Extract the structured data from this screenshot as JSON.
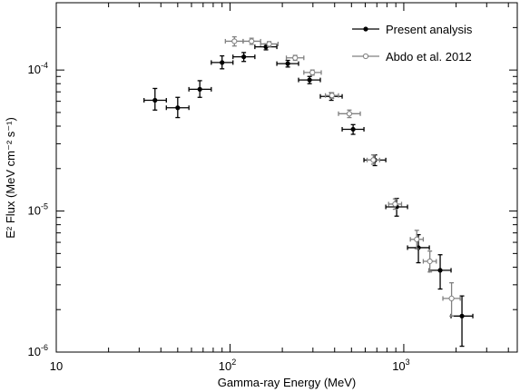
{
  "chart_data": {
    "type": "scatter",
    "title": "",
    "xlabel": "Gamma-ray Energy (MeV)",
    "ylabel": "E² Flux (MeV cm⁻² s⁻¹)",
    "x_scale": "log",
    "y_scale": "log",
    "xlim": [
      10,
      4500
    ],
    "ylim": [
      1e-06,
      0.0003
    ],
    "grid": false,
    "legend_position": "top-right",
    "x_tick_labels": [
      {
        "value": 10,
        "base": "10",
        "exp": ""
      },
      {
        "value": 100,
        "base": "10",
        "exp": "2"
      },
      {
        "value": 1000,
        "base": "10",
        "exp": "3"
      }
    ],
    "y_tick_labels": [
      {
        "value": 1e-06,
        "base": "10",
        "exp": "-6"
      },
      {
        "value": 1e-05,
        "base": "10",
        "exp": "-5"
      },
      {
        "value": 0.0001,
        "base": "10",
        "exp": "-4"
      }
    ],
    "series": [
      {
        "name": "Present analysis",
        "color": "#000000",
        "marker": "filled-circle",
        "points": [
          {
            "x": 37,
            "x_lo": 32,
            "x_hi": 43,
            "y": 6.1e-05,
            "y_lo": 5.2e-05,
            "y_hi": 7.4e-05
          },
          {
            "x": 50,
            "x_lo": 43,
            "x_hi": 58,
            "y": 5.4e-05,
            "y_lo": 4.6e-05,
            "y_hi": 6.4e-05
          },
          {
            "x": 67,
            "x_lo": 58,
            "x_hi": 78,
            "y": 7.3e-05,
            "y_lo": 6.4e-05,
            "y_hi": 8.4e-05
          },
          {
            "x": 90,
            "x_lo": 78,
            "x_hi": 104,
            "y": 0.000113,
            "y_lo": 0.000102,
            "y_hi": 0.000126
          },
          {
            "x": 120,
            "x_lo": 104,
            "x_hi": 139,
            "y": 0.000124,
            "y_lo": 0.000115,
            "y_hi": 0.000133
          },
          {
            "x": 161,
            "x_lo": 139,
            "x_hi": 186,
            "y": 0.000146,
            "y_lo": 0.000139,
            "y_hi": 0.000153
          },
          {
            "x": 215,
            "x_lo": 186,
            "x_hi": 248,
            "y": 0.000111,
            "y_lo": 0.000105,
            "y_hi": 0.000117
          },
          {
            "x": 287,
            "x_lo": 248,
            "x_hi": 331,
            "y": 8.5e-05,
            "y_lo": 8e-05,
            "y_hi": 9e-05
          },
          {
            "x": 383,
            "x_lo": 331,
            "x_hi": 442,
            "y": 6.5e-05,
            "y_lo": 6.1e-05,
            "y_hi": 6.9e-05
          },
          {
            "x": 511,
            "x_lo": 442,
            "x_hi": 590,
            "y": 3.8e-05,
            "y_lo": 3.5e-05,
            "y_hi": 4.1e-05
          },
          {
            "x": 682,
            "x_lo": 590,
            "x_hi": 788,
            "y": 2.3e-05,
            "y_lo": 2.1e-05,
            "y_hi": 2.5e-05
          },
          {
            "x": 910,
            "x_lo": 788,
            "x_hi": 1051,
            "y": 1.07e-05,
            "y_lo": 9.2e-06,
            "y_hi": 1.23e-05
          },
          {
            "x": 1214,
            "x_lo": 1051,
            "x_hi": 1403,
            "y": 5.5e-06,
            "y_lo": 4.3e-06,
            "y_hi": 6.8e-06
          },
          {
            "x": 1620,
            "x_lo": 1403,
            "x_hi": 1871,
            "y": 3.8e-06,
            "y_lo": 2.8e-06,
            "y_hi": 4.9e-06
          },
          {
            "x": 2162,
            "x_lo": 1871,
            "x_hi": 2497,
            "y": 1.8e-06,
            "y_lo": 1.1e-06,
            "y_hi": 2.5e-06
          }
        ]
      },
      {
        "name": "Abdo et al. 2012",
        "color": "#808080",
        "marker": "open-circle",
        "points": [
          {
            "x": 106,
            "x_lo": 94,
            "x_hi": 119,
            "y": 0.00016,
            "y_lo": 0.000148,
            "y_hi": 0.000172
          },
          {
            "x": 133,
            "x_lo": 119,
            "x_hi": 150,
            "y": 0.00016,
            "y_lo": 0.000152,
            "y_hi": 0.000168
          },
          {
            "x": 168,
            "x_lo": 150,
            "x_hi": 189,
            "y": 0.000153,
            "y_lo": 0.000147,
            "y_hi": 0.000159
          },
          {
            "x": 237,
            "x_lo": 211,
            "x_hi": 266,
            "y": 0.000122,
            "y_lo": 0.000117,
            "y_hi": 0.000127
          },
          {
            "x": 298,
            "x_lo": 266,
            "x_hi": 335,
            "y": 9.6e-05,
            "y_lo": 9.2e-05,
            "y_hi": 0.0001
          },
          {
            "x": 386,
            "x_lo": 354,
            "x_hi": 421,
            "y": 6.6e-05,
            "y_lo": 6.3e-05,
            "y_hi": 6.9e-05
          },
          {
            "x": 486,
            "x_lo": 421,
            "x_hi": 562,
            "y": 4.9e-05,
            "y_lo": 4.6e-05,
            "y_hi": 5.2e-05
          },
          {
            "x": 668,
            "x_lo": 615,
            "x_hi": 726,
            "y": 2.3e-05,
            "y_lo": 2.15e-05,
            "y_hi": 2.5e-05
          },
          {
            "x": 891,
            "x_lo": 818,
            "x_hi": 971,
            "y": 1.12e-05,
            "y_lo": 1.03e-05,
            "y_hi": 1.22e-05
          },
          {
            "x": 1188,
            "x_lo": 1091,
            "x_hi": 1295,
            "y": 6.3e-06,
            "y_lo": 5.4e-06,
            "y_hi": 7.3e-06
          },
          {
            "x": 1413,
            "x_lo": 1295,
            "x_hi": 1539,
            "y": 4.4e-06,
            "y_lo": 3.7e-06,
            "y_hi": 5.2e-06
          },
          {
            "x": 1884,
            "x_lo": 1679,
            "x_hi": 2113,
            "y": 2.4e-06,
            "y_lo": 1.8e-06,
            "y_hi": 3.1e-06
          }
        ]
      }
    ]
  }
}
